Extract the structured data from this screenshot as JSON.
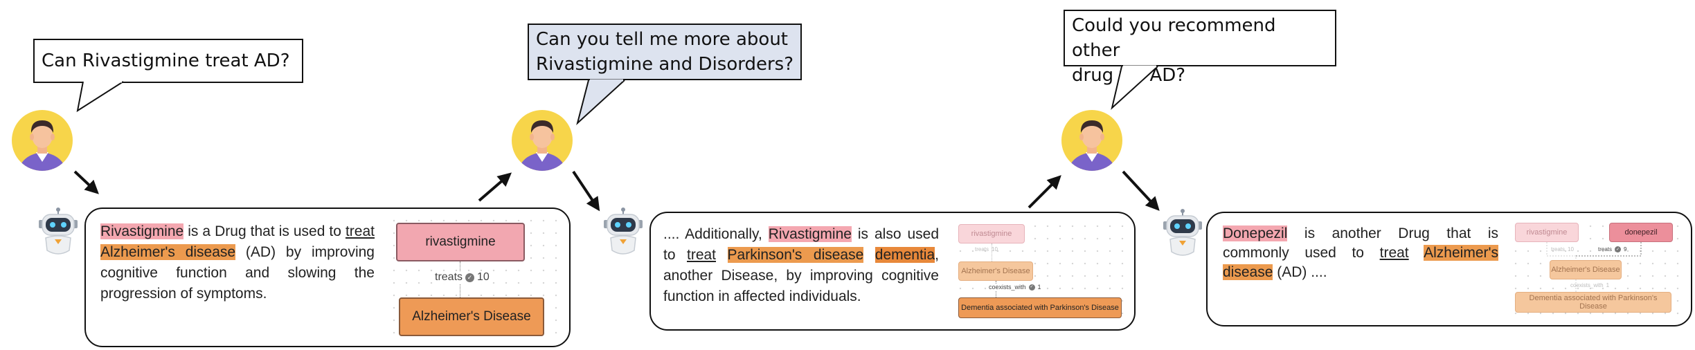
{
  "bubbles": [
    {
      "text": "Can Rivastigmine treat AD?"
    },
    {
      "line1": "Can you tell me more about",
      "line2": "Rivastigmine and Disorders?"
    },
    {
      "line1": "Could you recommend other",
      "line2": "drug for AD?"
    }
  ],
  "panel1": {
    "seg": [
      "Rivastigmine",
      " is a Drug that is used to ",
      "treat",
      " ",
      "Alzheimer's disease",
      " (AD) by improving cognitive function and slowing the progression of symptoms."
    ],
    "graph": {
      "node_a": "rivastigmine",
      "edge_label": "treats",
      "edge_count": "10",
      "node_b": "Alzheimer's Disease"
    }
  },
  "panel2": {
    "seg": [
      ".... Additionally, ",
      "Rivastigmine",
      " is also used to ",
      "treat",
      " ",
      "Parkinson's disease",
      " ",
      "dementia",
      ", another Disease, by improving cognitive function in affected individuals."
    ],
    "graph": {
      "node_a": "rivastigmine",
      "edge1_label": "treats",
      "edge1_count": "10",
      "node_b": "Alzheimer's Disease",
      "edge2_label": "coexists_with",
      "edge2_count": "1",
      "node_c": "Dementia associated with Parkinson's Disease"
    }
  },
  "panel3": {
    "seg": [
      "Donepezil",
      " is another Drug that is commonly used to ",
      "treat",
      " ",
      "Alzheimer's disease",
      " (AD) ...."
    ],
    "graph": {
      "node_a": "rivastigmine",
      "node_d": "donepezil",
      "edge1_label": "treats",
      "edge1_count": "10",
      "edge3_label": "treats",
      "edge3_count": "9",
      "node_b": "Alzheimer's Disease",
      "edge2_label": "coexists_with",
      "edge2_count": "1",
      "node_c": "Dementia associated with Parkinson's Disease"
    }
  },
  "colors": {
    "drug_highlight": "#f4a7b0",
    "disease_highlight": "#ec9a4e",
    "bubble_blue": "#dde3ef"
  },
  "icons": [
    "user-avatar-icon",
    "robot-icon",
    "arrow-icon",
    "check-circle-icon"
  ]
}
